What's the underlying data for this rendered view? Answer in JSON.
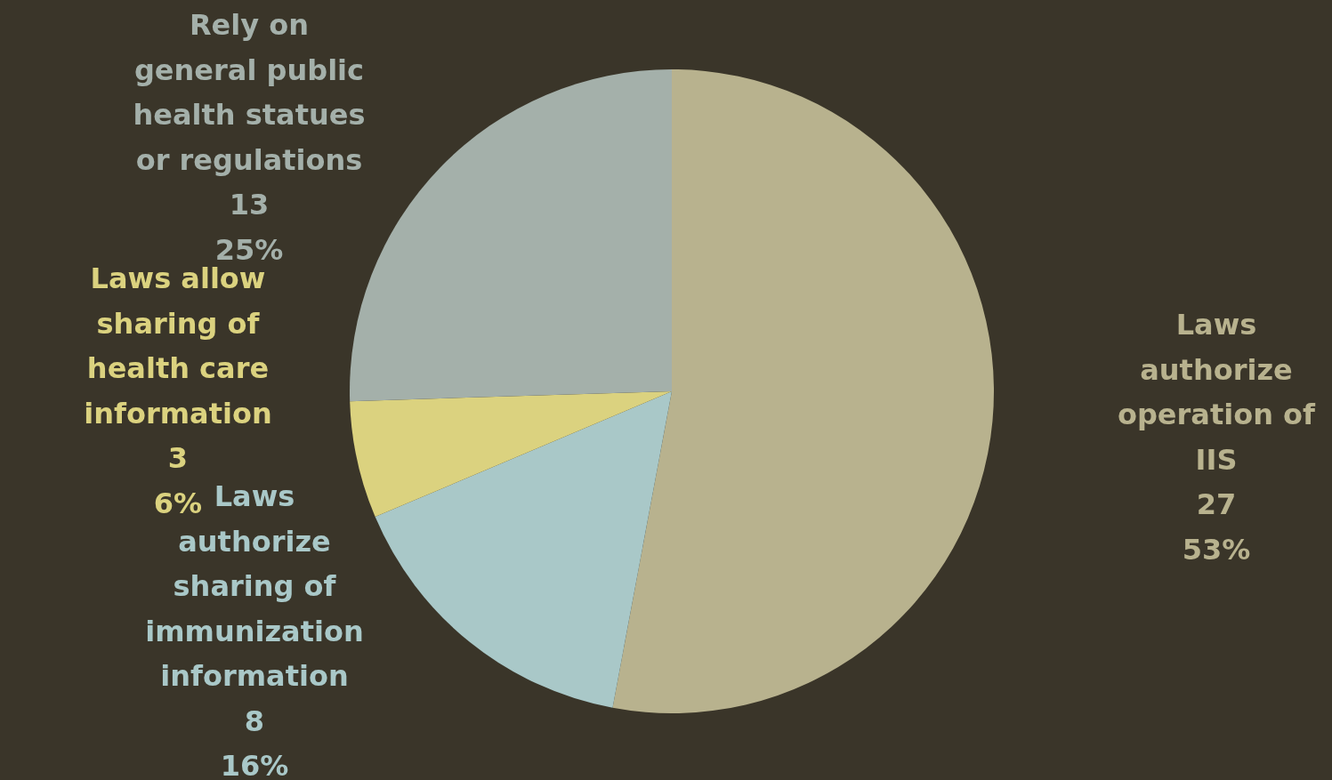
{
  "chart_data": {
    "type": "pie",
    "categories": [
      "Laws authorize operation of IIS",
      "Laws authorize sharing of immunization information",
      "Laws allow sharing of health care information",
      "Rely on general public health statues or regulations"
    ],
    "values": [
      27,
      8,
      3,
      13
    ],
    "colors": [
      "#b8b28e",
      "#a9c8c8",
      "#dbd27f",
      "#a4b0aa"
    ],
    "value_labels": [
      "27\n53%",
      "8\n16%",
      "3\n6%",
      "13\n25%"
    ],
    "legend": false
  }
}
